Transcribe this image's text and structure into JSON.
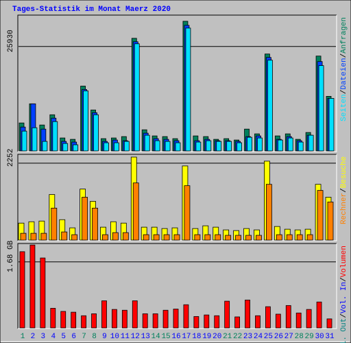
{
  "chart_data": [
    {
      "type": "bar",
      "title": "Tages-Statistik im Monat Maerz 2020",
      "ylim": [
        0,
        33560
      ],
      "yticks": [
        25930
      ],
      "legend_separator": "/",
      "series": [
        {
          "name": "Anfragen",
          "color": "#00805c",
          "values": [
            6950,
            11700,
            6440,
            8980,
            3220,
            2880,
            16100,
            10170,
            3050,
            3220,
            3560,
            27970,
            5250,
            3730,
            3560,
            3050,
            32200,
            3730,
            3560,
            2880,
            3050,
            2710,
            5420,
            4240,
            24070,
            3730,
            4240,
            2880,
            4580,
            23560,
            13560
          ]
        },
        {
          "name": "Dateien",
          "color": "#0040ff",
          "values": [
            5930,
            11700,
            5420,
            8140,
            2370,
            2200,
            15250,
            9490,
            2370,
            2710,
            2540,
            27120,
            4410,
            3050,
            2880,
            2540,
            31190,
            2540,
            2880,
            2540,
            2540,
            2370,
            3560,
            3730,
            23220,
            2880,
            3560,
            2540,
            3900,
            22200,
            13050
          ]
        },
        {
          "name": "Seiten",
          "color": "#00e0ff",
          "values": [
            4920,
            5760,
            2370,
            7290,
            1860,
            1530,
            14920,
            8980,
            2030,
            2030,
            2370,
            26610,
            3900,
            2540,
            2370,
            2030,
            30510,
            2200,
            2540,
            2370,
            2370,
            2030,
            3390,
            3220,
            22540,
            2710,
            3220,
            2200,
            3900,
            21190,
            13050
          ]
        }
      ]
    },
    {
      "type": "bar",
      "ylim": [
        0,
        2491
      ],
      "yticks": [
        2252
      ],
      "legend_separator": "/",
      "series": [
        {
          "name": "Besuche",
          "color": "#ffff00",
          "values": [
            498,
            538,
            558,
            1335,
            598,
            359,
            1495,
            1136,
            379,
            538,
            498,
            2431,
            379,
            379,
            339,
            359,
            2172,
            339,
            419,
            379,
            299,
            279,
            339,
            299,
            2312,
            399,
            319,
            299,
            319,
            1634,
            1256
          ]
        },
        {
          "name": "Rechner",
          "color": "#ff8000",
          "values": [
            199,
            199,
            199,
            937,
            239,
            159,
            1256,
            937,
            159,
            219,
            219,
            1674,
            159,
            159,
            159,
            159,
            1594,
            159,
            159,
            159,
            140,
            140,
            140,
            140,
            1634,
            159,
            159,
            159,
            159,
            1455,
            1116
          ]
        }
      ]
    },
    {
      "type": "bar",
      "ylim": [
        0,
        2.13
      ],
      "yticks": [
        {
          "value": 1.68,
          "label": "1.68 GB"
        }
      ],
      "legend_separator": "/",
      "categories": [
        "1",
        "2",
        "3",
        "4",
        "5",
        "6",
        "7",
        "8",
        "9",
        "10",
        "11",
        "12",
        "13",
        "14",
        "15",
        "16",
        "17",
        "18",
        "19",
        "20",
        "21",
        "22",
        "23",
        "24",
        "25",
        "26",
        "27",
        "28",
        "29",
        "30",
        "31"
      ],
      "category_color": "#0000ff",
      "weekend_color": "#00805c",
      "weekend_indices": [
        0,
        6,
        7,
        13,
        14,
        20,
        21,
        27,
        28
      ],
      "series": [
        {
          "name": "Volumen",
          "color": "#ff0000",
          "values": [
            1.94,
            2.11,
            1.78,
            0.5,
            0.42,
            0.4,
            0.31,
            0.36,
            0.69,
            0.47,
            0.45,
            0.69,
            0.36,
            0.36,
            0.45,
            0.48,
            0.59,
            0.29,
            0.33,
            0.31,
            0.68,
            0.28,
            0.71,
            0.31,
            0.54,
            0.35,
            0.57,
            0.38,
            0.47,
            0.66,
            0.23
          ]
        }
      ],
      "extra_legend": [
        {
          "name": "Vol. In",
          "color": "#0000ff"
        },
        {
          "name": "Vol. Out",
          "color": "#008080"
        }
      ]
    }
  ]
}
